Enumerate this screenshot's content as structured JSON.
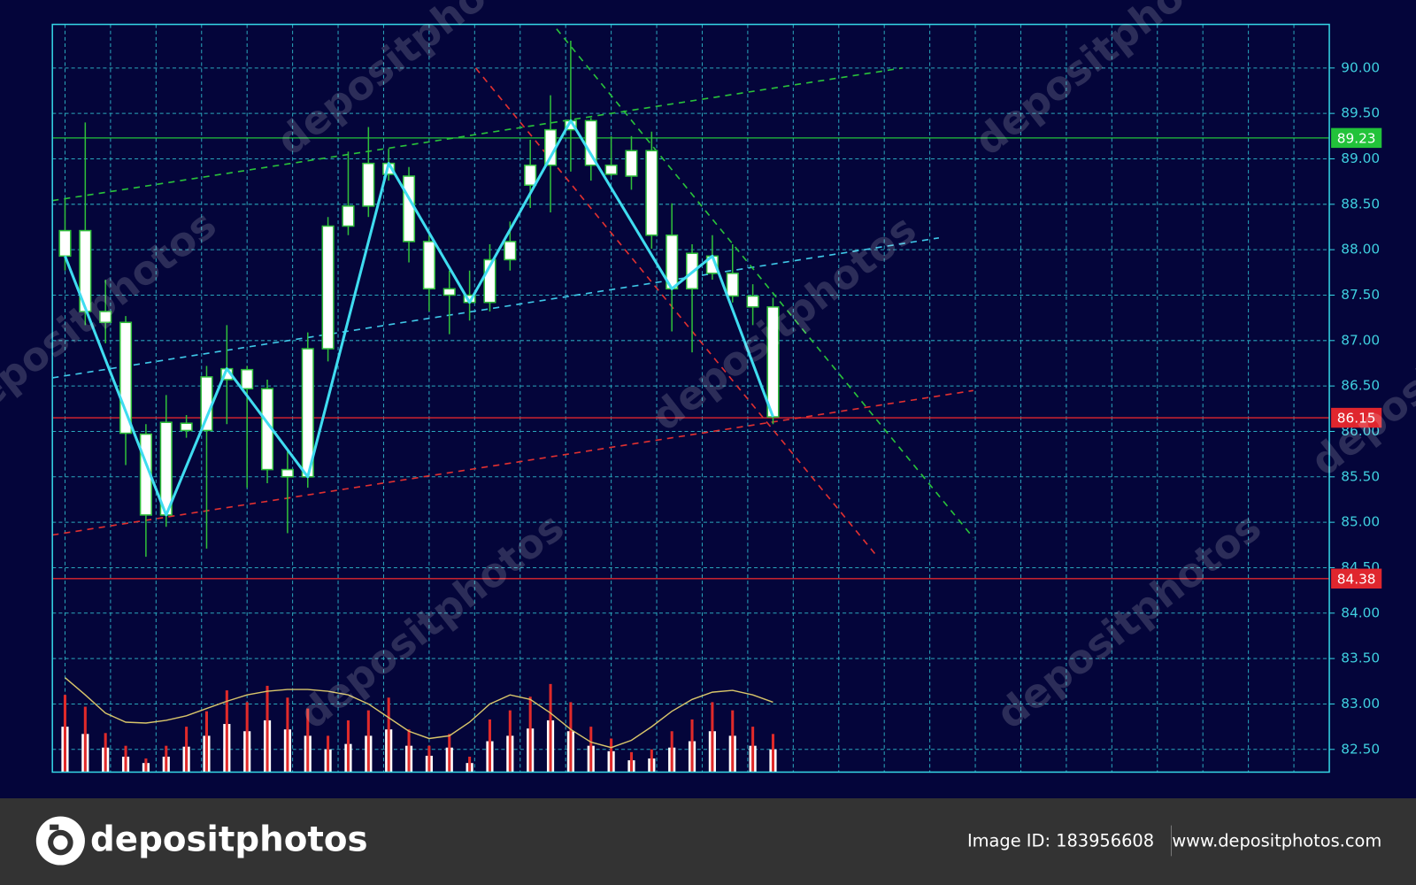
{
  "chart_data": {
    "type": "candlestick",
    "open": [
      88.21,
      88.21,
      87.32,
      87.2,
      85.97,
      85.08,
      86.01,
      86.01,
      86.57,
      86.68,
      86.47,
      85.58,
      85.5,
      86.91,
      88.26,
      88.48,
      88.83,
      88.81,
      88.09,
      87.57,
      87.5,
      87.42,
      87.89,
      88.71,
      88.93,
      89.32,
      89.42,
      88.93,
      89.09,
      89.09,
      88.16,
      87.57,
      87.74,
      87.74,
      87.49,
      87.37
    ],
    "high": [
      88.56,
      89.4,
      87.67,
      87.27,
      86.08,
      86.4,
      86.18,
      86.72,
      87.17,
      86.72,
      86.57,
      85.78,
      87.09,
      88.36,
      89.08,
      89.35,
      89.11,
      88.91,
      88.16,
      87.77,
      87.77,
      88.06,
      88.31,
      89.21,
      89.7,
      90.3,
      89.45,
      89.25,
      89.25,
      89.3,
      88.51,
      88.06,
      88.16,
      88.06,
      87.62,
      87.47
    ],
    "low": [
      87.77,
      87.17,
      86.97,
      85.63,
      84.62,
      84.95,
      85.93,
      84.71,
      86.08,
      85.38,
      85.43,
      84.88,
      85.38,
      86.77,
      88.16,
      88.36,
      88.76,
      87.86,
      87.32,
      87.07,
      87.22,
      87.32,
      87.77,
      88.46,
      88.41,
      88.86,
      88.76,
      88.81,
      88.66,
      88.01,
      87.1,
      86.87,
      87.67,
      87.42,
      87.17,
      86.08
    ],
    "close": [
      87.93,
      87.32,
      87.2,
      85.98,
      85.08,
      86.1,
      86.09,
      86.6,
      86.69,
      86.47,
      85.58,
      85.5,
      86.91,
      88.26,
      88.48,
      88.95,
      88.95,
      88.09,
      87.57,
      87.5,
      87.42,
      87.89,
      88.09,
      88.93,
      89.32,
      89.42,
      88.93,
      88.83,
      88.81,
      88.16,
      87.57,
      87.96,
      87.93,
      87.49,
      87.37,
      86.16
    ],
    "candle_color": "#2fbf3a",
    "volume": [
      82.75,
      82.67,
      82.52,
      82.42,
      82.35,
      82.42,
      82.53,
      82.65,
      82.78,
      82.7,
      82.82,
      82.72,
      82.65,
      82.5,
      82.56,
      82.65,
      82.72,
      82.54,
      82.43,
      82.52,
      82.35,
      82.59,
      82.65,
      82.73,
      82.82,
      82.7,
      82.54,
      82.48,
      82.38,
      82.4,
      82.52,
      82.59,
      82.7,
      82.65,
      82.54,
      82.5
    ],
    "volume_high": [
      83.1,
      82.97,
      82.68,
      82.54,
      82.4,
      82.54,
      82.75,
      82.92,
      83.15,
      83.02,
      83.2,
      83.07,
      82.95,
      82.65,
      82.82,
      82.93,
      83.07,
      82.72,
      82.54,
      82.67,
      82.42,
      82.83,
      82.93,
      83.08,
      83.22,
      83.02,
      82.75,
      82.62,
      82.47,
      82.5,
      82.7,
      82.83,
      83.02,
      82.93,
      82.75,
      82.67
    ],
    "volume_ma": [
      83.29,
      83.1,
      82.9,
      82.8,
      82.79,
      82.82,
      82.87,
      82.95,
      83.03,
      83.1,
      83.14,
      83.16,
      83.16,
      83.14,
      83.1,
      83.0,
      82.85,
      82.7,
      82.62,
      82.65,
      82.8,
      83.0,
      83.1,
      83.05,
      82.9,
      82.72,
      82.58,
      82.52,
      82.6,
      82.75,
      82.92,
      83.05,
      83.13,
      83.15,
      83.1,
      83.02
    ],
    "volume_ma_color": "#d8c56a",
    "zigzag": {
      "x": [
        0,
        5,
        8,
        12,
        16,
        20,
        25,
        30,
        32,
        35
      ],
      "values": [
        87.93,
        85.08,
        86.69,
        85.5,
        88.95,
        87.42,
        89.42,
        87.57,
        87.93,
        86.16
      ],
      "color": "#3fdcf0"
    },
    "trendlines": [
      {
        "x": [
          -0.625,
          41.4
        ],
        "values": [
          88.54,
          90.0
        ],
        "color": "#29c23a"
      },
      {
        "x": [
          -0.625,
          43.2
        ],
        "values": [
          86.59,
          88.13
        ],
        "color": "#3fc8e8"
      },
      {
        "x": [
          -0.625,
          44.9
        ],
        "values": [
          84.86,
          86.45
        ],
        "color": "#e03030"
      },
      {
        "x": [
          20.3,
          40.2
        ],
        "values": [
          90.0,
          84.61
        ],
        "color": "#e03030"
      },
      {
        "x": [
          24.3,
          44.9
        ],
        "values": [
          90.43,
          84.83
        ],
        "color": "#29c23a"
      }
    ],
    "levels": [
      {
        "value": 89.23,
        "color": "#22c33a"
      },
      {
        "value": 86.15,
        "color": "#e0262e"
      },
      {
        "value": 84.38,
        "color": "#e0262e"
      }
    ],
    "xlim": [
      -0.625,
      62.5
    ],
    "ylim": [
      82.25,
      90.48
    ],
    "yticks": [
      {
        "value": 82.5,
        "label": "82.50"
      },
      {
        "value": 83,
        "label": "83.00"
      },
      {
        "value": 83.5,
        "label": "83.50"
      },
      {
        "value": 84,
        "label": "84.00"
      },
      {
        "value": 84.5,
        "label": "84.50"
      },
      {
        "value": 85,
        "label": "85.00"
      },
      {
        "value": 85.5,
        "label": "85.50"
      },
      {
        "value": 86,
        "label": "86.00"
      },
      {
        "value": 86.5,
        "label": "86.50"
      },
      {
        "value": 87,
        "label": "87.00"
      },
      {
        "value": 87.5,
        "label": "87.50"
      },
      {
        "value": 88,
        "label": "88.00"
      },
      {
        "value": 88.5,
        "label": "88.50"
      },
      {
        "value": 89,
        "label": "89.00"
      },
      {
        "value": 89.5,
        "label": "89.50"
      },
      {
        "value": 90,
        "label": "90.00"
      }
    ],
    "grid": true
  },
  "watermark": "depositphotos",
  "footer": {
    "brand": "depositphotos",
    "image_id": "Image ID: 183956608",
    "url": "www.depositphotos.com"
  }
}
